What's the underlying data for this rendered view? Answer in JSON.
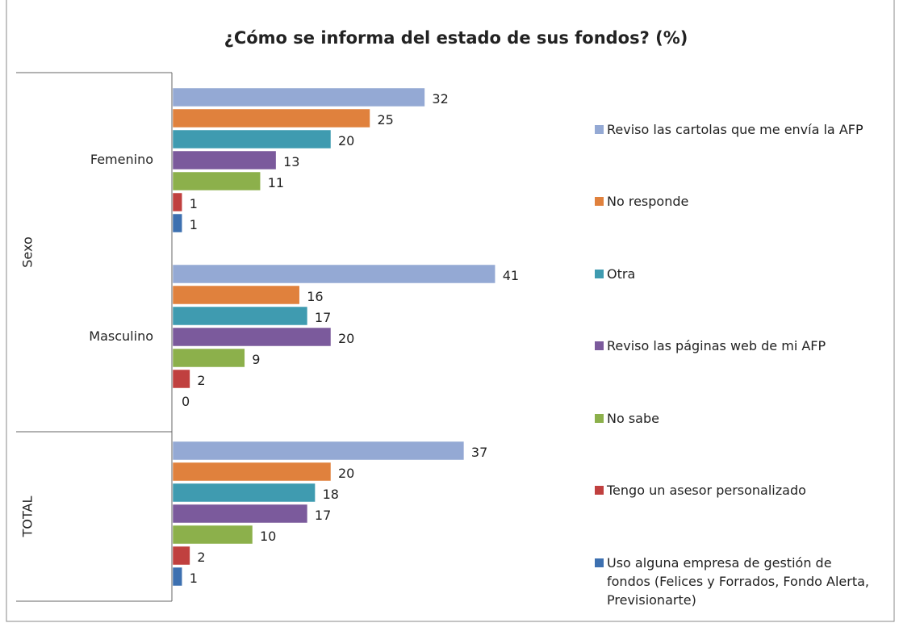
{
  "chart_data": {
    "type": "hbar",
    "title": "¿Cómo se informa del estado de sus fondos? (%)",
    "categories": [
      "Femenino",
      "Masculino",
      null
    ],
    "category_groups": [
      "Sexo",
      "Sexo",
      "TOTAL"
    ],
    "xlim": [
      0,
      50
    ],
    "series": [
      {
        "name": "Reviso las cartolas que me envía la AFP",
        "color": "#94a9d4",
        "values": [
          32,
          41,
          37
        ]
      },
      {
        "name": "No responde",
        "color": "#e0813d",
        "values": [
          25,
          16,
          20
        ]
      },
      {
        "name": "Otra",
        "color": "#3f9bb0",
        "values": [
          20,
          17,
          18
        ]
      },
      {
        "name": "Reviso las páginas web de mi AFP",
        "color": "#7b5a9c",
        "values": [
          13,
          20,
          17
        ]
      },
      {
        "name": "No sabe",
        "color": "#8cb04b",
        "values": [
          11,
          9,
          10
        ]
      },
      {
        "name": "Tengo un asesor personalizado",
        "color": "#c0403f",
        "values": [
          1,
          2,
          2
        ]
      },
      {
        "name": "Uso alguna empresa de gestión de fondos (Felices y Forrados, Fondo Alerta, Previsionarte)",
        "color": "#3d70b0",
        "values": [
          1,
          0,
          1
        ]
      }
    ]
  }
}
